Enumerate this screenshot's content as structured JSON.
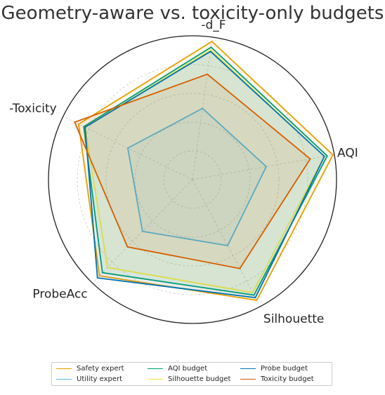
{
  "chart_data": {
    "type": "radar",
    "title": "Geometry-aware vs. toxicity-only budgets",
    "axes": [
      "AQI",
      "Silhouette",
      "ProbeAcc",
      "-Toxicity",
      "-d_F"
    ],
    "rlim": [
      0,
      1
    ],
    "grid": true,
    "series": [
      {
        "name": "Safety expert",
        "color": "#E69F00",
        "values": [
          0.99,
          0.95,
          0.93,
          0.88,
          0.97
        ]
      },
      {
        "name": "Utility expert",
        "color": "#56B4E9",
        "values": [
          0.52,
          0.52,
          0.5,
          0.5,
          0.5
        ]
      },
      {
        "name": "AQI budget",
        "color": "#009E73",
        "values": [
          0.95,
          0.91,
          0.9,
          0.84,
          0.93
        ]
      },
      {
        "name": "Silhouette budget",
        "color": "#F0E442",
        "values": [
          0.93,
          0.89,
          0.85,
          0.83,
          0.91
        ]
      },
      {
        "name": "Probe budget",
        "color": "#0072B2",
        "values": [
          0.93,
          0.93,
          0.95,
          0.83,
          0.9
        ]
      },
      {
        "name": "Toxicity budget",
        "color": "#D55E00",
        "values": [
          0.83,
          0.7,
          0.65,
          0.91,
          0.74
        ]
      }
    ],
    "legend_position": "bottom"
  }
}
